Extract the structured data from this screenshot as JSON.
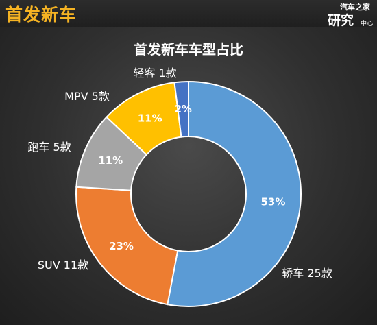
{
  "header": {
    "title": "首发新车",
    "logo_line1": "汽车之家",
    "logo_line2": "研究",
    "logo_line3": "中心"
  },
  "chart_data": {
    "type": "pie",
    "style": "donut",
    "title": "首发新车车型占比",
    "slices": [
      {
        "name": "轿车",
        "count_label": "25款",
        "count": 25,
        "percent": 53,
        "percent_label": "53%",
        "color": "#5b9bd5"
      },
      {
        "name": "SUV",
        "count_label": "11款",
        "count": 11,
        "percent": 23,
        "percent_label": "23%",
        "color": "#ed7d31"
      },
      {
        "name": "跑车",
        "count_label": "5款",
        "count": 5,
        "percent": 11,
        "percent_label": "11%",
        "color": "#a5a5a5"
      },
      {
        "name": "MPV",
        "count_label": "5款",
        "count": 5,
        "percent": 11,
        "percent_label": "11%",
        "color": "#ffc000"
      },
      {
        "name": "轻客",
        "count_label": "1款",
        "count": 1,
        "percent": 2,
        "percent_label": "2%",
        "color": "#4472c4"
      }
    ]
  }
}
